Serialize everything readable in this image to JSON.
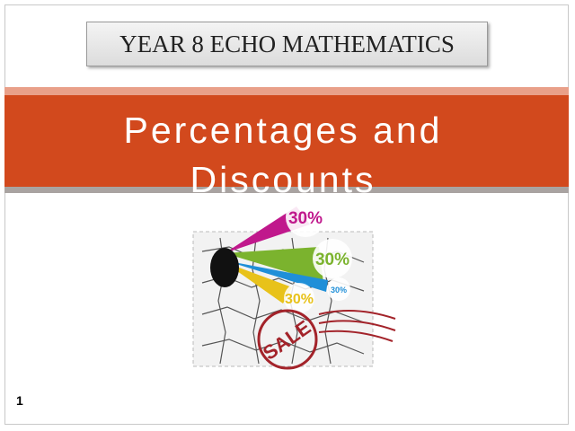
{
  "header": {
    "title": "YEAR 8 ECHO MATHEMATICS"
  },
  "title": "Percentages and Discounts",
  "image": {
    "labels": [
      "30%",
      "30%",
      "30%",
      "30%"
    ],
    "stamp": "SALE"
  },
  "slide_number": "1"
}
